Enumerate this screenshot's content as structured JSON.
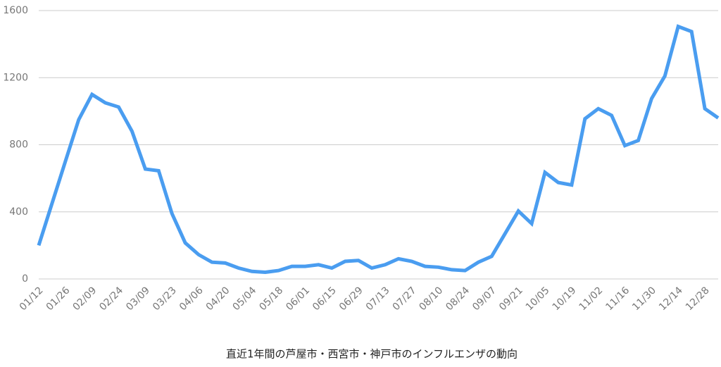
{
  "chart_data": {
    "type": "line",
    "title": "直近1年間の芦屋市・西宮市・神戸市のインフルエンザの動向",
    "categories": [
      "01/12",
      null,
      "01/26",
      null,
      "02/09",
      null,
      "02/24",
      null,
      "03/09",
      null,
      "03/23",
      null,
      "04/06",
      null,
      "04/20",
      null,
      "05/04",
      null,
      "05/18",
      null,
      "06/01",
      null,
      "06/15",
      null,
      "06/29",
      null,
      "07/13",
      null,
      "07/27",
      null,
      "08/10",
      null,
      "08/24",
      null,
      "09/07",
      null,
      "09/21",
      null,
      "10/05",
      null,
      "10/19",
      null,
      "11/02",
      null,
      "11/16",
      null,
      "11/30",
      null,
      "12/14",
      null,
      "12/28",
      null
    ],
    "series": [
      {
        "color": "#4a9df0",
        "values": [
          200,
          450,
          700,
          950,
          1100,
          1050,
          1025,
          880,
          655,
          645,
          390,
          215,
          145,
          100,
          95,
          65,
          45,
          40,
          50,
          75,
          75,
          85,
          65,
          105,
          110,
          65,
          85,
          120,
          105,
          75,
          70,
          55,
          50,
          100,
          135,
          270,
          405,
          330,
          635,
          575,
          560,
          955,
          1015,
          975,
          795,
          825,
          1075,
          1210,
          1505,
          1475,
          1015,
          960
        ]
      }
    ],
    "ylim": [
      0,
      1600
    ],
    "yticks": [
      0,
      400,
      800,
      1200,
      1600
    ],
    "grid": true
  }
}
